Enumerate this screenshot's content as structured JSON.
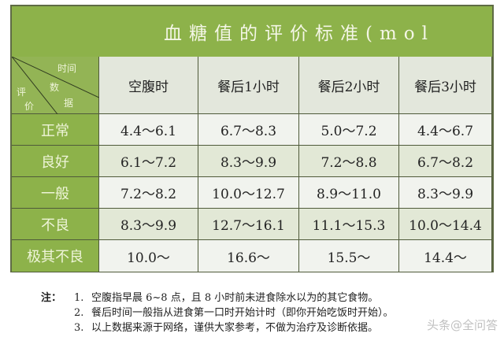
{
  "table": {
    "title": "血糖值的评价标准(mol",
    "corner": {
      "time": "时间",
      "data1": "数",
      "data2": "据",
      "eval1": "评",
      "eval2": "价"
    },
    "columns": [
      "空腹时",
      "餐后1小时",
      "餐后2小时",
      "餐后3小时"
    ],
    "rows": [
      {
        "label": "正常",
        "values": [
          "4.4～6.1",
          "6.7～8.3",
          "5.0～7.2",
          "4.4～6.7"
        ]
      },
      {
        "label": "良好",
        "values": [
          "6.1～7.2",
          "8.3～9.9",
          "7.2～8.8",
          "6.7～8.2"
        ]
      },
      {
        "label": "一般",
        "values": [
          "7.2～8.2",
          "10.0～12.7",
          "8.9～11.0",
          "8.3～9.9"
        ]
      },
      {
        "label": "不良",
        "values": [
          "8.3～9.9",
          "12.7～16.1",
          "11.1～15.3",
          "10.0～14.4"
        ]
      },
      {
        "label": "极其不良",
        "values": [
          "10.0～",
          "16.6～",
          "15.5～",
          "14.4～"
        ]
      }
    ]
  },
  "notes": {
    "heading": "注：",
    "items": [
      {
        "num": "1.",
        "text": "空腹指早晨 6~8 点，且 8 小时前未进食除水以为的其它食物。"
      },
      {
        "num": "2.",
        "text": "餐后时间一般指从进食第一口时开始计时（即你开始吃饭时开始）。"
      },
      {
        "num": "3.",
        "text": "以上数据来源于网络，谨供大家参考，不做为治疗及诊断依据。"
      }
    ]
  },
  "watermark": "头条@全问答"
}
